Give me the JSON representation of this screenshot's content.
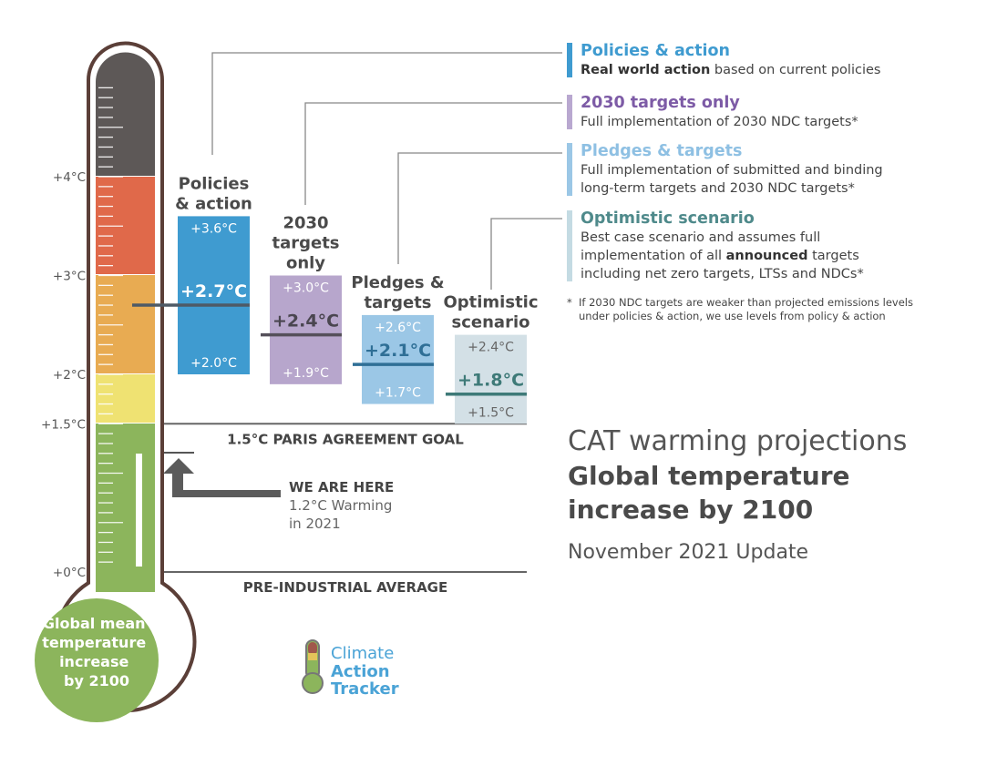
{
  "chart_data": {
    "type": "range-bar",
    "title": "CAT warming projections",
    "subtitle": "Global temperature increase by 2100",
    "update": "November 2021 Update",
    "axis_ticks": [
      {
        "value": 4,
        "label": "+4°C"
      },
      {
        "value": 3,
        "label": "+3°C"
      },
      {
        "value": 2,
        "label": "+2°C"
      },
      {
        "value": 1.5,
        "label": "+1.5°C"
      },
      {
        "value": 0,
        "label": "+0°C"
      }
    ],
    "unit": "°C",
    "series": [
      {
        "name": "Policies & action",
        "name_lines": [
          "Policies",
          "& action"
        ],
        "high": 3.6,
        "median": 2.7,
        "low": 2.0,
        "high_label": "+3.6°C",
        "median_label": "+2.7°C",
        "low_label": "+2.0°C",
        "color": "#3f9bd0",
        "line": "#4e5a66",
        "text": "#ffffff",
        "median_text": "#ffffff"
      },
      {
        "name": "2030 targets only",
        "name_lines": [
          "2030",
          "targets",
          "only"
        ],
        "high": 3.0,
        "median": 2.4,
        "low": 1.9,
        "high_label": "+3.0°C",
        "median_label": "+2.4°C",
        "low_label": "+1.9°C",
        "color": "#b7a6cc",
        "line": "#55505a",
        "text": "#ffffff",
        "median_text": "#4a4650"
      },
      {
        "name": "Pledges & targets",
        "name_lines": [
          "Pledges &",
          "targets"
        ],
        "high": 2.6,
        "median": 2.1,
        "low": 1.7,
        "high_label": "+2.6°C",
        "median_label": "+2.1°C",
        "low_label": "+1.7°C",
        "color": "#9bc7e6",
        "line": "#2f6f96",
        "text": "#ffffff",
        "median_text": "#2f6f96"
      },
      {
        "name": "Optimistic scenario",
        "name_lines": [
          "Optimistic",
          "scenario"
        ],
        "high": 2.4,
        "median": 1.8,
        "low": 1.5,
        "high_label": "+2.4°C",
        "median_label": "+1.8°C",
        "low_label": "+1.5°C",
        "color": "#d3e0e6",
        "line": "#3e7a78",
        "text": "#666666",
        "median_text": "#3e7a78"
      }
    ],
    "reference_lines": [
      {
        "value": 1.5,
        "label": "1.5°C PARIS AGREEMENT GOAL"
      },
      {
        "value": 0,
        "label": "PRE-INDUSTRIAL AVERAGE"
      }
    ],
    "current": {
      "value": 1.2,
      "title": "WE ARE HERE",
      "line1": "1.2°C Warming",
      "line2": "in 2021"
    }
  },
  "thermometer": {
    "bulb_lines": [
      "Global mean",
      "temperature",
      "increase",
      "by 2100"
    ],
    "colors": {
      "gray": "#5d5857",
      "red": "#e0694a",
      "orange": "#e8ab52",
      "yellow": "#efe272",
      "green": "#8cb55c",
      "outline": "#5b3f38"
    }
  },
  "legend": [
    {
      "title": "Policies & action",
      "color": "#3f9bd0",
      "bold": "Real world action",
      "rest": " based on current policies"
    },
    {
      "title": "2030 targets only",
      "color": "#7d5ba6",
      "line1": "Full implementation of 2030 NDC targets*"
    },
    {
      "title": "Pledges & targets",
      "color": "#8ec0e3",
      "line1": "Full implementation of submitted and binding",
      "line2": "long-term targets and 2030 NDC targets*"
    },
    {
      "title": "Optimistic scenario",
      "color": "#4f8a8b",
      "bar": "#c4dbe3",
      "line1": "Best case scenario and assumes full",
      "line2a": "implementation of all ",
      "line2b": "announced",
      "line2c": " targets",
      "line3": "including net zero targets, LTSs and NDCs*"
    }
  ],
  "footnote": {
    "star": "*",
    "line1": "If 2030 NDC targets are weaker than projected emissions levels",
    "line2": "under policies & action, we use levels from policy & action"
  },
  "logo": {
    "line1": "Climate",
    "line2": "Action",
    "line3": "Tracker"
  }
}
